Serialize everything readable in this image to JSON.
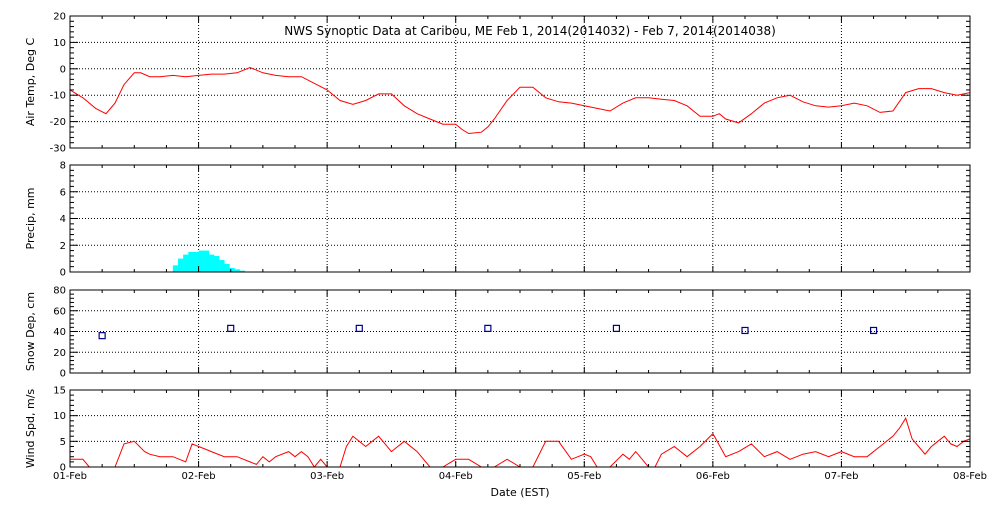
{
  "title": "NWS Synoptic Data at Caribou, ME   Feb  1, 2014(2014032) - Feb  7, 2014(2014038)",
  "x_axis": {
    "label": "Date (EST)",
    "ticks": [
      "01-Feb",
      "02-Feb",
      "03-Feb",
      "04-Feb",
      "05-Feb",
      "06-Feb",
      "07-Feb",
      "08-Feb"
    ]
  },
  "colors": {
    "temp": "#ff0000",
    "precip": "#00ffff",
    "snow": "#00008b",
    "wind": "#ff0000",
    "grid": "#000000"
  },
  "chart_data": [
    {
      "type": "line",
      "ylabel": "Air Temp, Deg C",
      "ylim": [
        -30,
        20
      ],
      "yticks": [
        -30,
        -20,
        -10,
        0,
        10,
        20
      ],
      "x_units": "days since 01-Feb 00:00 EST",
      "series": [
        {
          "x": [
            0,
            0.1,
            0.2,
            0.28,
            0.35,
            0.42,
            0.5,
            0.55,
            0.62,
            0.7,
            0.8,
            0.9,
            1.0,
            1.1,
            1.2,
            1.3,
            1.4,
            1.5,
            1.6,
            1.7,
            1.8,
            2.0,
            2.1,
            2.2,
            2.3,
            2.4,
            2.5,
            2.6,
            2.7,
            2.8,
            2.9,
            3.0,
            3.05,
            3.1,
            3.2,
            3.25,
            3.3,
            3.4,
            3.5,
            3.6,
            3.7,
            3.8,
            3.9,
            4.0,
            4.1,
            4.2,
            4.3,
            4.4,
            4.5,
            4.6,
            4.7,
            4.8,
            4.9,
            5.0,
            5.05,
            5.1,
            5.2,
            5.3,
            5.4,
            5.5,
            5.6,
            5.7,
            5.8,
            5.9,
            6.0,
            6.1,
            6.2,
            6.3,
            6.4,
            6.5,
            6.6,
            6.7,
            6.8,
            6.9,
            7.0
          ],
          "y": [
            -8,
            -11,
            -15,
            -17,
            -13,
            -6,
            -1.5,
            -1.5,
            -3,
            -3,
            -2.5,
            -3,
            -2.5,
            -2,
            -2,
            -1.5,
            0.5,
            -1.5,
            -2.5,
            -3,
            -3,
            -8,
            -12,
            -13.5,
            -12,
            -9.5,
            -9.5,
            -14,
            -17,
            -19,
            -21,
            -21,
            -23,
            -24.5,
            -24,
            -22,
            -19,
            -12,
            -7,
            -7,
            -11,
            -12.5,
            -13,
            -14,
            -15,
            -16,
            -13,
            -11,
            -11,
            -11.5,
            -12,
            -14,
            -18,
            -18,
            -17,
            -19,
            -20.5,
            -17,
            -13,
            -11,
            -10,
            -12.5,
            -14,
            -14.5,
            -14,
            -13,
            -14,
            -16.5,
            -16,
            -9,
            -7.5,
            -7.5,
            -9,
            -10,
            -9
          ]
        }
      ]
    },
    {
      "type": "bar",
      "ylabel": "Precip, mm",
      "ylim": [
        0,
        8
      ],
      "yticks": [
        0,
        2,
        4,
        6,
        8
      ],
      "x_units": "days since 01-Feb 00:00 EST",
      "bar_width_days": 0.042,
      "series": [
        {
          "x": [
            0.8,
            0.84,
            0.88,
            0.92,
            0.96,
            1.0,
            1.04,
            1.08,
            1.12,
            1.16,
            1.2,
            1.24,
            1.28,
            1.32
          ],
          "y": [
            0.5,
            1.0,
            1.3,
            1.5,
            1.5,
            1.6,
            1.6,
            1.3,
            1.2,
            0.9,
            0.6,
            0.3,
            0.2,
            0.1
          ]
        }
      ]
    },
    {
      "type": "scatter",
      "ylabel": "Snow Dep, cm",
      "ylim": [
        0,
        80
      ],
      "yticks": [
        0,
        20,
        40,
        60,
        80
      ],
      "x_units": "days since 01-Feb 00:00 EST",
      "series": [
        {
          "x": [
            0.25,
            1.25,
            2.25,
            3.25,
            4.25,
            5.25,
            6.25
          ],
          "y": [
            36,
            43,
            43,
            43,
            43,
            41,
            41
          ]
        }
      ]
    },
    {
      "type": "line",
      "ylabel": "Wind Spd, m/s",
      "ylim": [
        0,
        15
      ],
      "yticks": [
        0,
        5,
        10,
        15
      ],
      "x_units": "days since 01-Feb 00:00 EST",
      "series": [
        {
          "x": [
            0,
            0.05,
            0.1,
            0.15,
            0.25,
            0.35,
            0.42,
            0.5,
            0.58,
            0.62,
            0.7,
            0.8,
            0.9,
            0.95,
            1.0,
            1.05,
            1.1,
            1.2,
            1.3,
            1.4,
            1.45,
            1.5,
            1.55,
            1.6,
            1.7,
            1.75,
            1.8,
            1.85,
            1.9,
            1.95,
            2.0,
            2.05,
            2.1,
            2.15,
            2.2,
            2.3,
            2.4,
            2.5,
            2.6,
            2.7,
            2.8,
            2.85,
            2.9,
            3.0,
            3.1,
            3.2,
            3.3,
            3.4,
            3.5,
            3.6,
            3.7,
            3.8,
            3.9,
            4.0,
            4.05,
            4.1,
            4.2,
            4.3,
            4.35,
            4.4,
            4.5,
            4.55,
            4.6,
            4.7,
            4.8,
            4.9,
            5.0,
            5.1,
            5.2,
            5.3,
            5.4,
            5.5,
            5.6,
            5.7,
            5.8,
            5.9,
            6.0,
            6.1,
            6.2,
            6.3,
            6.4,
            6.45,
            6.5,
            6.55,
            6.6,
            6.65,
            6.7,
            6.75,
            6.8,
            6.85,
            6.9,
            6.95,
            7.0
          ],
          "y": [
            1.5,
            1.5,
            1.5,
            0,
            0,
            0,
            4.5,
            5,
            3,
            2.5,
            2,
            2,
            1,
            4.5,
            4,
            3.5,
            3,
            2,
            2,
            1,
            0.5,
            2,
            1,
            2,
            3,
            2,
            3,
            2,
            0,
            1.5,
            0,
            0,
            0,
            4,
            6,
            4,
            6,
            3,
            5,
            3,
            0,
            0,
            0,
            1.5,
            1.5,
            0,
            0,
            1.5,
            0,
            0,
            5,
            5,
            1.5,
            2.5,
            2,
            0,
            0,
            2.5,
            1.5,
            3,
            0,
            0,
            2.5,
            4,
            2,
            4,
            6.5,
            2,
            3,
            4.5,
            2,
            3,
            1.5,
            2.5,
            3,
            2,
            3,
            2,
            2,
            4,
            6,
            7.5,
            9.5,
            5.5,
            4,
            2.5,
            4,
            5,
            6,
            4.5,
            4,
            5,
            5.5
          ]
        }
      ]
    }
  ]
}
